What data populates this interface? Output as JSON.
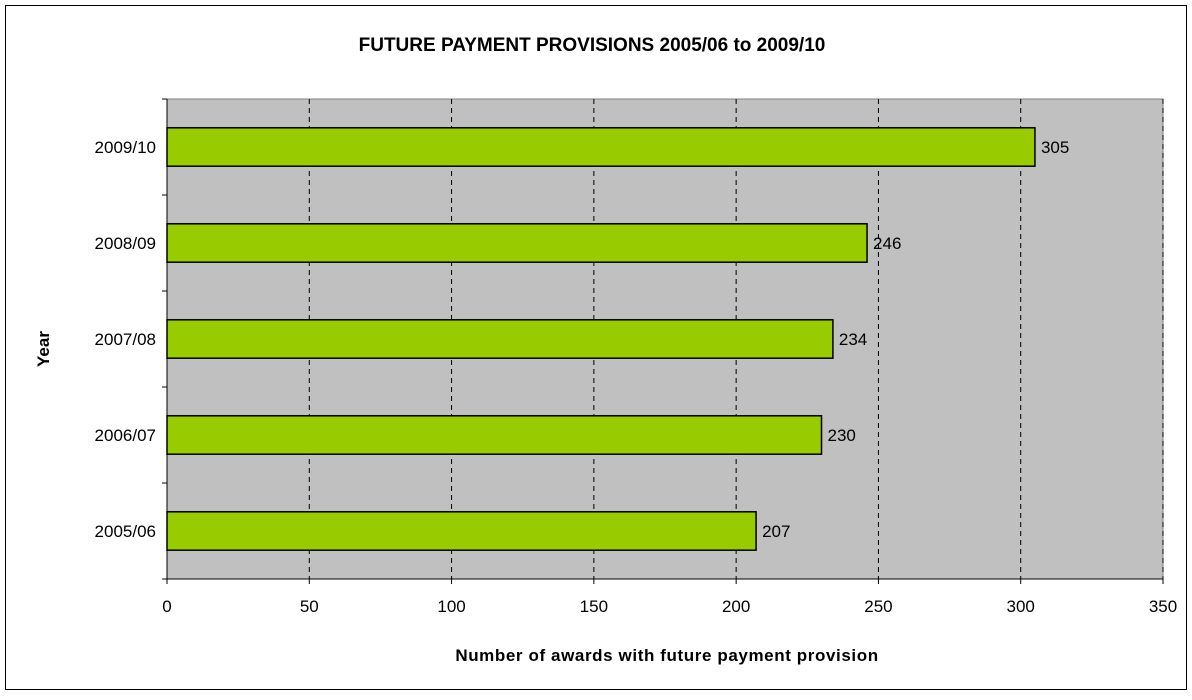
{
  "chart_data": {
    "type": "bar",
    "orientation": "horizontal",
    "title": "FUTURE PAYMENT PROVISIONS 2005/06 to 2009/10",
    "xlabel": "Number of awards with future payment provision",
    "ylabel": "Year",
    "categories": [
      "2005/06",
      "2006/07",
      "2007/08",
      "2008/09",
      "2009/10"
    ],
    "values": [
      207,
      230,
      234,
      246,
      305
    ],
    "xlim": [
      0,
      350
    ],
    "xticks": [
      0,
      50,
      100,
      150,
      200,
      250,
      300,
      350
    ],
    "grid": "vertical dashed",
    "legend": "none",
    "colors": {
      "bar_fill": "#99CC00",
      "bar_stroke": "#000000",
      "plot_background": "#C0C0C0"
    }
  }
}
